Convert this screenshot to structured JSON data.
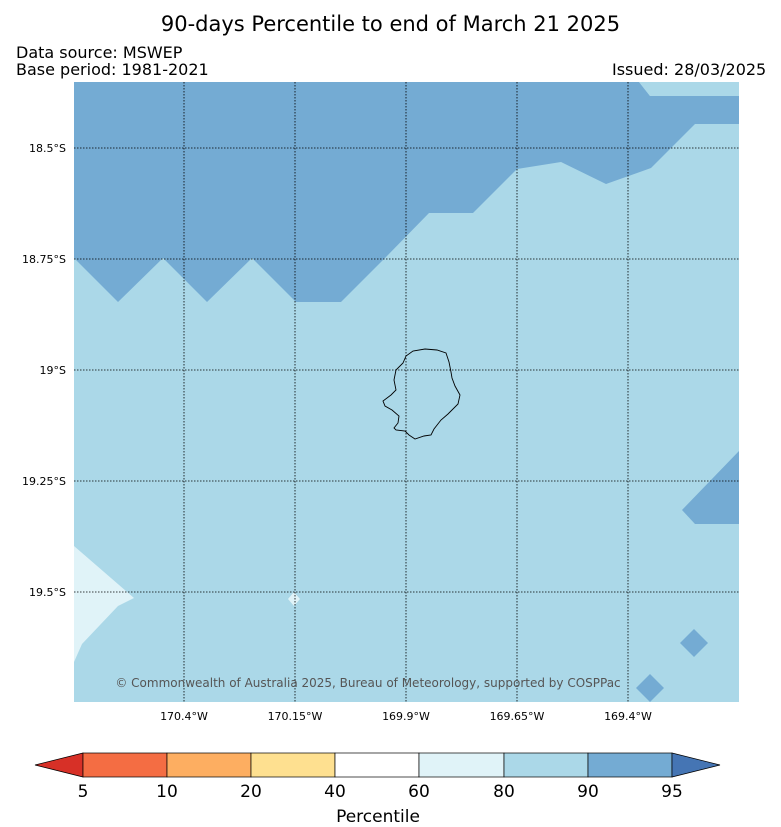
{
  "header": {
    "title": "90-days Percentile to end of March 21 2025",
    "data_source": "Data source: MSWEP",
    "base_period": "Base period: 1981-2021",
    "issued": "Issued: 28/03/2025"
  },
  "map": {
    "lat_labels": [
      "18.5°S",
      "18.75°S",
      "19°S",
      "19.25°S",
      "19.5°S"
    ],
    "lon_labels": [
      "170.4°W",
      "170.15°W",
      "169.9°W",
      "169.65°W",
      "169.4°W"
    ],
    "credit": "© Commonwealth of Australia 2025, Bureau of Meteorology, supported by COSPPac",
    "colors": {
      "p90_95": "#74abd3",
      "p80_90": "#abd8e8",
      "p60_80": "#e0f3f8",
      "p95_plus": "#4575b4"
    }
  },
  "colorbar": {
    "title": "Percentile",
    "ticks": [
      "5",
      "10",
      "20",
      "40",
      "60",
      "80",
      "90",
      "95"
    ],
    "colors": [
      "#d73027",
      "#f46d43",
      "#fdae61",
      "#fee090",
      "#ffffff",
      "#e0f3f8",
      "#abd8e8",
      "#74abd3",
      "#4575b4"
    ]
  }
}
